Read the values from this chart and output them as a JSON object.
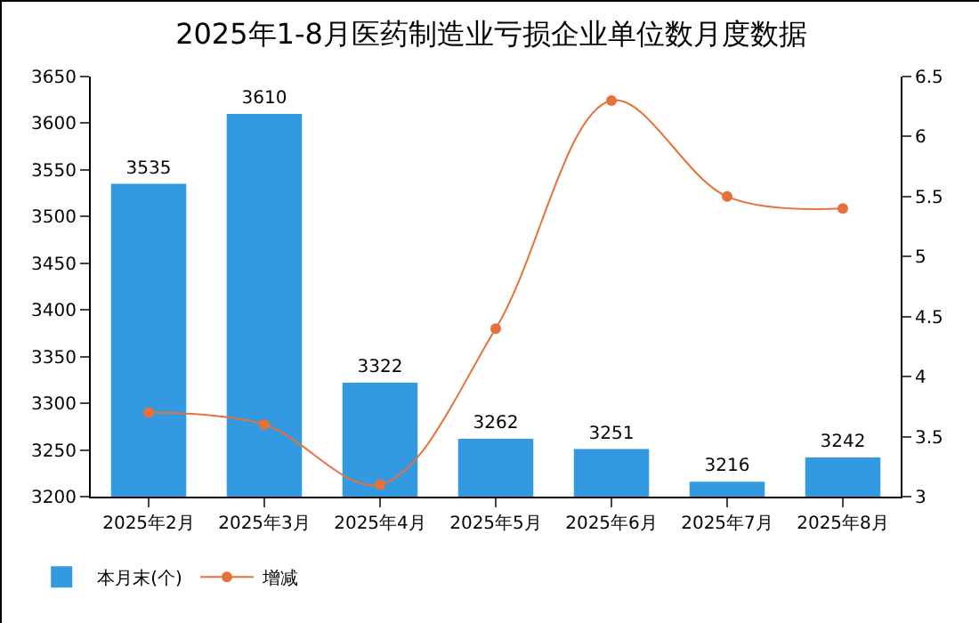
{
  "chart_data": {
    "type": "bar",
    "title": "2025年1-8月医药制造业亏损企业单位数月度数据",
    "categories": [
      "2025年2月",
      "2025年3月",
      "2025年4月",
      "2025年5月",
      "2025年6月",
      "2025年7月",
      "2025年8月"
    ],
    "series": [
      {
        "name": "本月末(个)",
        "color": "#3399e0",
        "values": [
          3535,
          3610,
          3322,
          3262,
          3251,
          3216,
          3242
        ],
        "value_labels": [
          "3535",
          "3610",
          "3322",
          "3262",
          "3251",
          "3216",
          "3242"
        ]
      },
      {
        "name": "增减",
        "type": "line",
        "axis": "y2",
        "color": "#e8703a",
        "values": [
          3.7,
          3.6,
          3.1,
          4.4,
          6.3,
          5.5,
          5.4
        ]
      }
    ],
    "marker": "circle",
    "ylim": [
      3200,
      3650
    ],
    "yticks": [
      3200,
      3250,
      3300,
      3350,
      3400,
      3450,
      3500,
      3550,
      3600,
      3650
    ],
    "y2lim": [
      3,
      6.5
    ],
    "y2ticks": [
      3,
      3.5,
      4,
      4.5,
      5,
      5.5,
      6,
      6.5
    ],
    "grid": false,
    "legend": "bottom left"
  }
}
